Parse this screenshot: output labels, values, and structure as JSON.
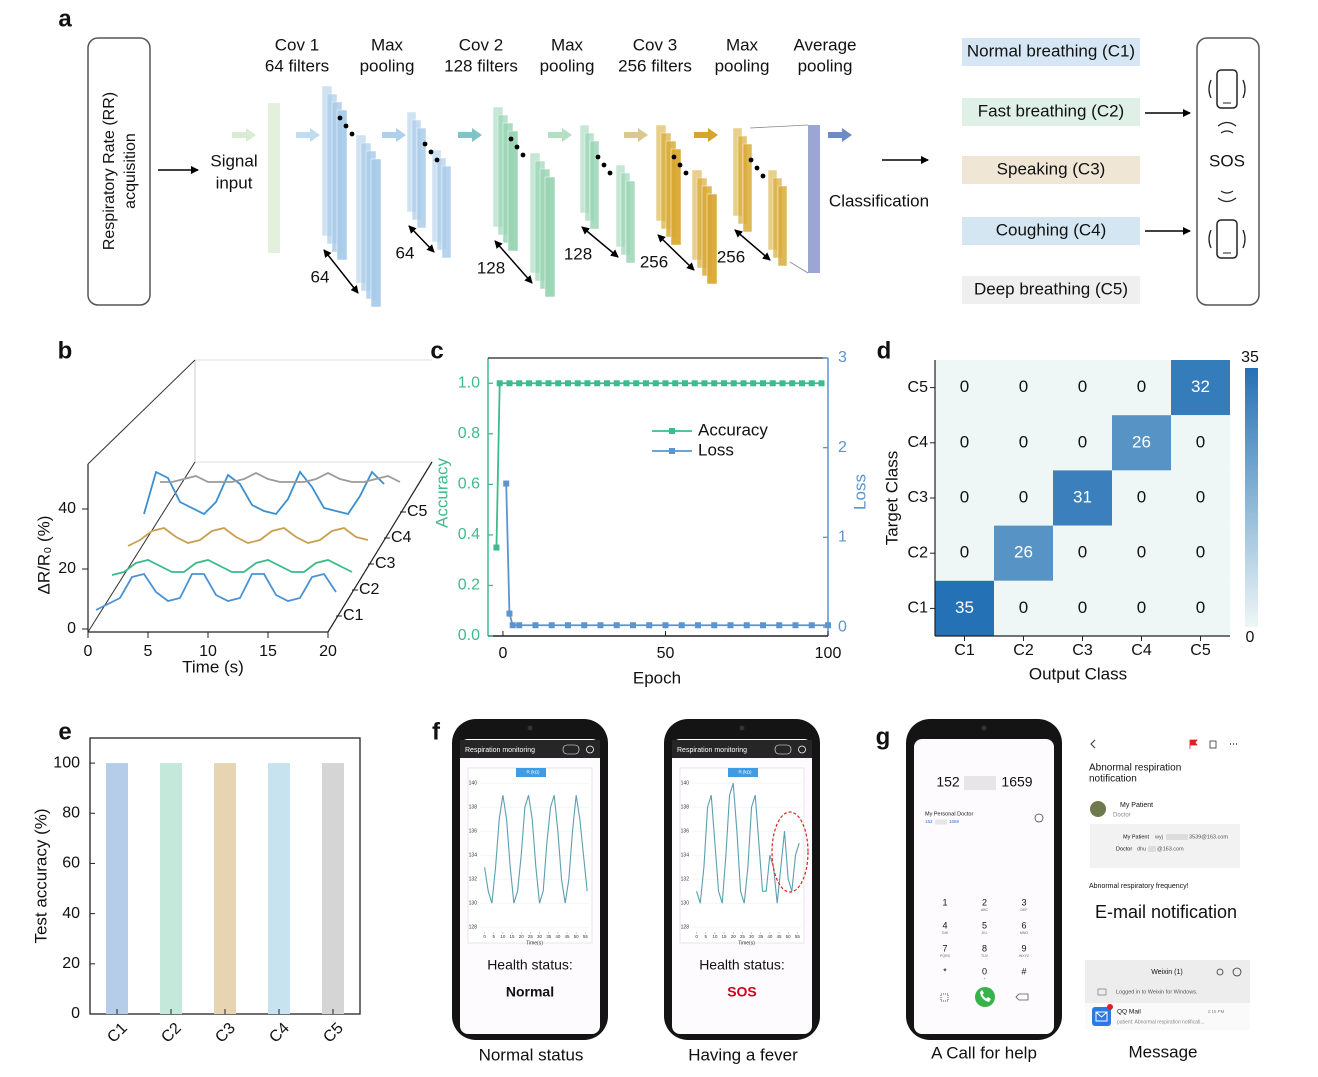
{
  "panel_labels": [
    "a",
    "b",
    "c",
    "d",
    "e",
    "f",
    "g"
  ],
  "diagram": {
    "input": [
      "Respiratory Rate (RR)",
      "acquisition"
    ],
    "signal_input": [
      "Signal",
      "input"
    ],
    "layers": [
      [
        "Cov 1",
        "64 filters"
      ],
      [
        "Max",
        "pooling"
      ],
      [
        "Cov 2",
        "128 filters"
      ],
      [
        "Max",
        "pooling"
      ],
      [
        "Cov 3",
        "256 filters"
      ],
      [
        "Max",
        "pooling"
      ],
      [
        "Average",
        "pooling"
      ]
    ],
    "sizes": [
      "64",
      "64",
      "128",
      "128",
      "256",
      "256"
    ],
    "classification": "Classification",
    "classes": [
      "Normal breathing (C1)",
      "Fast breathing (C2)",
      "Speaking (C3)",
      "Coughing (C4)",
      "Deep breathing (C5)"
    ],
    "alert": "SOS"
  },
  "chart_data": [
    {
      "type": "waterfall",
      "xlabel": "Time (s)",
      "ylabel": "ΔR/R₀ (%)",
      "xlim": [
        0,
        20
      ],
      "xticks": [
        0,
        5,
        10,
        15,
        20
      ],
      "ylim": [
        0,
        55
      ],
      "yticks": [
        0,
        20,
        40
      ],
      "x": [
        0,
        1,
        2,
        3,
        4,
        5,
        6,
        7,
        8,
        9,
        10,
        11,
        12,
        13,
        14,
        15,
        16,
        17,
        18,
        19,
        20
      ],
      "series": [
        {
          "name": "C1",
          "color": "#4a92d2",
          "values": [
            2,
            4,
            6,
            13,
            14,
            8,
            5,
            6,
            14,
            14,
            7,
            5,
            6,
            14,
            14,
            7,
            5,
            6,
            13,
            14,
            8
          ]
        },
        {
          "name": "C2",
          "color": "#3cb98b",
          "values": [
            5,
            6,
            9,
            10,
            8,
            6,
            6,
            9,
            10,
            8,
            6,
            6,
            9,
            10,
            8,
            6,
            6,
            9,
            10,
            8,
            6
          ]
        },
        {
          "name": "C3",
          "color": "#c9a052",
          "values": [
            6,
            8,
            11,
            12,
            9,
            7,
            8,
            11,
            12,
            9,
            7,
            8,
            11,
            12,
            9,
            7,
            8,
            11,
            12,
            9,
            8
          ]
        },
        {
          "name": "C4",
          "color": "#3a8fcf",
          "values": [
            8,
            22,
            20,
            12,
            10,
            8,
            12,
            21,
            18,
            11,
            9,
            8,
            13,
            22,
            17,
            10,
            9,
            8,
            14,
            22,
            18
          ]
        },
        {
          "name": "C5",
          "color": "#9a9a9a",
          "values": [
            10,
            10,
            11,
            12,
            10,
            10,
            10,
            11,
            13,
            11,
            10,
            10,
            10,
            11,
            13,
            11,
            10,
            10,
            11,
            12,
            10
          ]
        }
      ]
    },
    {
      "type": "line",
      "xlabel": "Epoch",
      "ylabel": "Accuracy",
      "y2label": "Loss",
      "xlim": [
        -4.6,
        100
      ],
      "xticks": [
        0,
        50,
        100
      ],
      "ylim": [
        0,
        1.1
      ],
      "yticks": [
        {
          "value": 0,
          "label": "0.0"
        },
        {
          "value": 0.2,
          "label": "0.2"
        },
        {
          "value": 0.4,
          "label": "0.4"
        },
        {
          "value": 0.6,
          "label": "0.6"
        },
        {
          "value": 0.8,
          "label": "0.8"
        },
        {
          "value": 1,
          "label": "1.0"
        }
      ],
      "y2lim": [
        -0.1,
        3
      ],
      "y2ticks": [
        0,
        1,
        2,
        3
      ],
      "series": [
        {
          "name": "Accuracy",
          "color": "#3dbb8d",
          "x": [
            -2,
            -1,
            2,
            5,
            8,
            11,
            14,
            17,
            20,
            23,
            26,
            29,
            32,
            35,
            38,
            41,
            44,
            47,
            50,
            53,
            56,
            59,
            62,
            65,
            68,
            71,
            74,
            77,
            80,
            83,
            86,
            89,
            92,
            95,
            98
          ],
          "values": [
            0.35,
            1,
            1,
            1,
            1,
            1,
            1,
            1,
            1,
            1,
            1,
            1,
            1,
            1,
            1,
            1,
            1,
            1,
            1,
            1,
            1,
            1,
            1,
            1,
            1,
            1,
            1,
            1,
            1,
            1,
            1,
            1,
            1,
            1,
            1
          ]
        },
        {
          "name": "Loss",
          "color": "#5b94cf",
          "axis": "y2",
          "x": [
            1,
            2,
            3,
            5,
            10,
            15,
            20,
            25,
            30,
            35,
            40,
            45,
            50,
            55,
            60,
            65,
            70,
            75,
            80,
            85,
            90,
            95,
            100
          ],
          "values": [
            1.6,
            0.15,
            0.02,
            0.02,
            0.02,
            0.02,
            0.02,
            0.02,
            0.02,
            0.02,
            0.02,
            0.02,
            0.02,
            0.02,
            0.02,
            0.02,
            0.02,
            0.02,
            0.02,
            0.02,
            0.02,
            0.02,
            0.02
          ]
        }
      ]
    },
    {
      "type": "heatmap",
      "xlabel": "Output Class",
      "ylabel": "Target Class",
      "categories": [
        "C1",
        "C2",
        "C3",
        "C4",
        "C5"
      ],
      "rows": [
        "C5",
        "C4",
        "C3",
        "C2",
        "C1"
      ],
      "values": [
        [
          0,
          0,
          0,
          0,
          32
        ],
        [
          0,
          0,
          0,
          26,
          0
        ],
        [
          0,
          0,
          31,
          0,
          0
        ],
        [
          0,
          26,
          0,
          0,
          0
        ],
        [
          35,
          0,
          0,
          0,
          0
        ]
      ],
      "clim": [
        0,
        35
      ],
      "cticks": [
        0,
        35
      ],
      "colors": [
        "#eef7f6",
        "#2471b5"
      ]
    },
    {
      "type": "bar",
      "ylabel": "Test accuracy (%)",
      "categories": [
        "C1",
        "C2",
        "C3",
        "C4",
        "C5"
      ],
      "values": [
        100,
        100,
        100,
        100,
        100
      ],
      "colors": [
        "#b5cde8",
        "#c4e8da",
        "#e6d5b0",
        "#c7e3ef",
        "#d5d5d5"
      ],
      "ylim": [
        0,
        110
      ],
      "yticks": [
        0,
        20,
        40,
        60,
        80,
        100
      ]
    }
  ],
  "phones": [
    {
      "title": "Respiration monitoring",
      "chart": {
        "type": "line",
        "legend": "R (kΩ)",
        "xlabel": "Time(s)",
        "color": "#5a9fb2",
        "x": [
          0,
          2,
          4,
          6,
          8,
          10,
          12,
          14,
          16,
          18,
          20,
          22,
          24,
          26,
          28,
          30,
          32,
          34,
          36,
          38,
          40,
          42,
          44,
          46,
          48,
          50,
          52,
          54,
          56
        ],
        "values": [
          133,
          131,
          130,
          133,
          137,
          139,
          137,
          133,
          130,
          131,
          134,
          138,
          139,
          137,
          133,
          130,
          131,
          135,
          138,
          139,
          136,
          132,
          130,
          132,
          136,
          139,
          137,
          134,
          131
        ],
        "xlim": [
          -2.5,
          57
        ],
        "xticks": [
          0,
          5,
          10,
          15,
          20,
          25,
          30,
          35,
          40,
          45,
          50,
          55
        ],
        "ylim": [
          127.6,
          140.6
        ],
        "yticks": [
          128,
          130,
          132,
          134,
          136,
          138,
          140
        ]
      },
      "status_label": "Health status:",
      "status": "Normal",
      "status_color": "#111111",
      "caption": "Normal status"
    },
    {
      "title": "Respiration monitoring",
      "chart": {
        "type": "line",
        "legend": "R (kΩ)",
        "xlabel": "Time(s)",
        "color": "#5a9fb2",
        "x": [
          0,
          2,
          4,
          6,
          8,
          10,
          12,
          14,
          16,
          18,
          20,
          22,
          24,
          26,
          28,
          30,
          32,
          34,
          36,
          38,
          40,
          42,
          44,
          46,
          48,
          50,
          52,
          54,
          56
        ],
        "values": [
          131,
          130,
          133,
          138,
          139,
          135,
          131,
          130,
          134,
          139,
          140,
          136,
          131,
          130,
          133,
          138,
          139,
          135,
          131,
          131,
          134,
          133,
          130,
          133,
          136,
          132,
          131,
          134,
          135
        ],
        "xlim": [
          -2.5,
          57
        ],
        "xticks": [
          0,
          5,
          10,
          15,
          20,
          25,
          30,
          35,
          40,
          45,
          50,
          55
        ],
        "ylim": [
          127.6,
          140.6
        ],
        "yticks": [
          128,
          130,
          132,
          134,
          136,
          138,
          140
        ]
      },
      "status_label": "Health status:",
      "status": "SOS",
      "status_color": "#d0021b",
      "caption": "Having a fever"
    }
  ],
  "call": {
    "number_start": "152",
    "number_end": "1659",
    "contact": "My Personal Doctor",
    "contact_start": "152",
    "contact_end": "1659",
    "keys": [
      {
        "digit": "1"
      },
      {
        "digit": "2",
        "letters": "ABC"
      },
      {
        "digit": "3",
        "letters": "DEF"
      },
      {
        "digit": "4",
        "letters": "GHI"
      },
      {
        "digit": "5",
        "letters": "JKL"
      },
      {
        "digit": "6",
        "letters": "MNO"
      },
      {
        "digit": "7",
        "letters": "PQRS"
      },
      {
        "digit": "8",
        "letters": "TUV"
      },
      {
        "digit": "9",
        "letters": "WXYZ"
      },
      {
        "digit": "*"
      },
      {
        "digit": "0",
        "letters": "+"
      },
      {
        "digit": "#"
      }
    ],
    "caption": "A Call for help"
  },
  "email": {
    "title": [
      "Abnormal respiration",
      "notification"
    ],
    "sender": "My Patient",
    "recipient": "Doctor",
    "from_label": "My Patient",
    "from_user": "wyj",
    "from_domain": "3539@163.com",
    "to_label": "Doctor",
    "to_user": "dhu",
    "to_domain": "@163.com",
    "body": "Abnormal respiratory frequency!",
    "caption": "E-mail notification"
  },
  "message": {
    "app": "Weixin (1)",
    "notice": "Logged in to Weixin for Windows.",
    "sender": "QQ Mail",
    "preview": "patient: Abnormal respiration notificati...",
    "time": "2:16 PM",
    "caption": "Message"
  }
}
